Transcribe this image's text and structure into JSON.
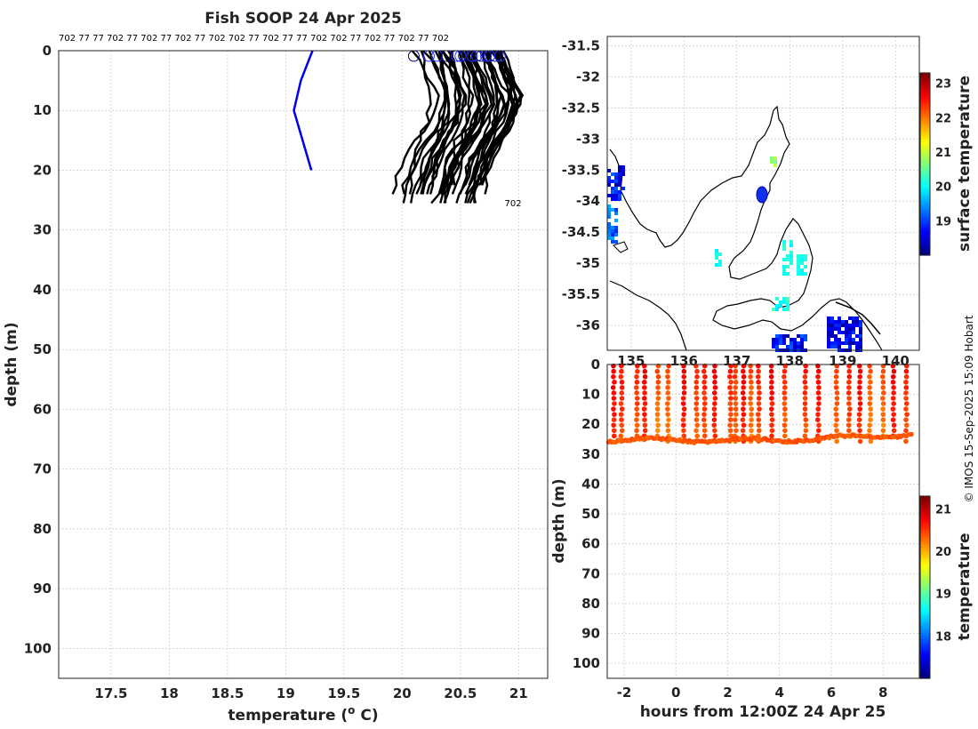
{
  "chart_data": [
    {
      "type": "line",
      "title": "Fish SOOP 24 Apr 2025",
      "xlabel": "temperature (",
      "xlabel_sup": "o",
      "xlabel_end": " C)",
      "ylabel": "depth (m)",
      "xlim": [
        17.05,
        21.25
      ],
      "ylim": [
        105,
        0
      ],
      "xticks": [
        "17.5",
        "18",
        "18.5",
        "19",
        "19.5",
        "20",
        "20.5",
        "21"
      ],
      "yticks": [
        "0",
        "10",
        "20",
        "30",
        "40",
        "50",
        "60",
        "70",
        "80",
        "90",
        "100"
      ],
      "top_labels": "702 77 77 702 77 702 77 702 77 702 702 77 702 77 77 702 702 77 702 77 702 77 702",
      "end_label": "702",
      "series": [
        {
          "color": "#0000ee",
          "points": [
            [
              19.23,
              0
            ],
            [
              19.13,
              5
            ],
            [
              19.07,
              10
            ],
            [
              19.22,
              20
            ]
          ]
        }
      ],
      "profile_color": "#000000",
      "surface_markers_temp": [
        20.1,
        20.23,
        20.3,
        20.38,
        20.47,
        20.5,
        20.53,
        20.6,
        20.64,
        20.68,
        20.72,
        20.75,
        20.8,
        20.84
      ]
    },
    {
      "type": "heatmap",
      "title": "",
      "xticks": [
        "135",
        "136",
        "137",
        "138",
        "139",
        "140"
      ],
      "yticks": [
        "-31.5",
        "-32",
        "-32.5",
        "-33",
        "-33.5",
        "-34",
        "-34.5",
        "-35",
        "-35.5",
        "-36"
      ],
      "xlim": [
        134.55,
        140.45
      ],
      "ylim": [
        -36.4,
        -31.35
      ],
      "colorbar_label": "surface temperature",
      "colorbar_ticks": [
        "19",
        "20",
        "21",
        "22",
        "23"
      ],
      "colorbar_range": [
        18.0,
        23.3
      ]
    },
    {
      "type": "scatter",
      "xlabel": "hours from 12:00Z 24 Apr 25",
      "ylabel": "depth (m)",
      "xticks": [
        "-2",
        "0",
        "2",
        "4",
        "6",
        "8"
      ],
      "yticks": [
        "0",
        "10",
        "20",
        "30",
        "40",
        "50",
        "60",
        "70",
        "80",
        "90",
        "100"
      ],
      "xlim": [
        -2.65,
        9.4
      ],
      "ylim": [
        105,
        0
      ],
      "colorbar_label": "temperature",
      "colorbar_ticks": [
        "18",
        "19",
        "20",
        "21"
      ],
      "colorbar_range": [
        17.0,
        21.3
      ]
    }
  ],
  "credit": "© IMOS 15-Sep-2025 15:09 Hobart"
}
